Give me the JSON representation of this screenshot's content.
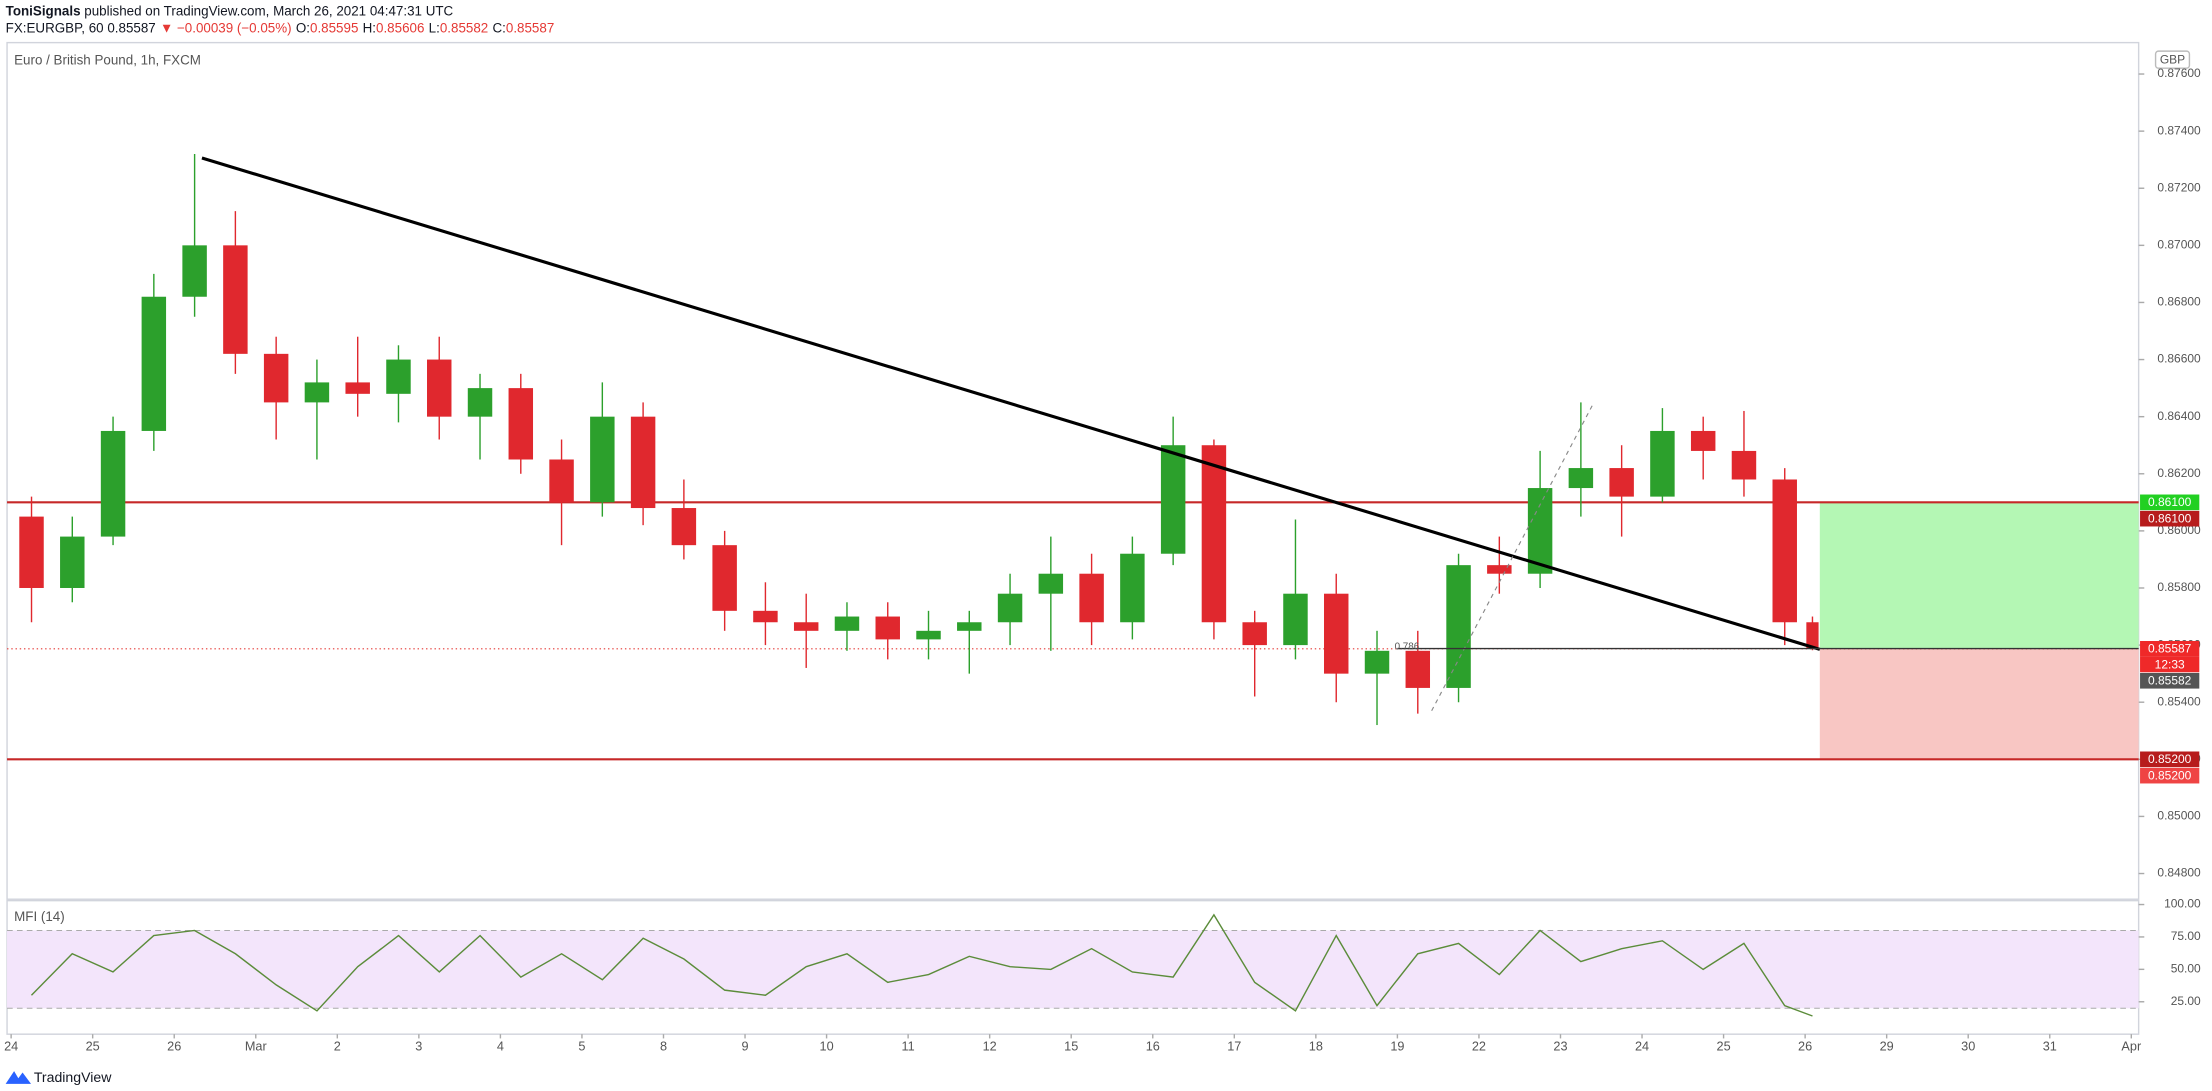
{
  "chart_data": {
    "type": "candlestick",
    "publisher": "ToniSignals",
    "published": " published on TradingView.com, March 26, 2021 04:47:31 UTC",
    "quote": [
      "FX:EURGBP, 60 0.85587",
      "▼ −0.00039 (−0.05%)",
      "O:",
      "0.85595",
      "H:",
      "0.85606",
      "L:",
      "0.85582",
      "C:",
      "0.85587"
    ],
    "quote_colors": [
      "#131722",
      "#e53935",
      "#131722",
      "#e53935",
      "#131722",
      "#e53935",
      "#131722",
      "#e53935",
      "#131722",
      "#e53935"
    ],
    "title": "Euro / British Pound, 1h, FXCM",
    "currency": "GBP",
    "up_color": "#2ca02c",
    "down_color": "#e0282e",
    "xlim": [
      -0.05,
      26.09
    ],
    "xticks": [
      {
        "value": 0,
        "label": "24"
      },
      {
        "value": 1,
        "label": "25"
      },
      {
        "value": 2,
        "label": "26"
      },
      {
        "value": 3,
        "label": "Mar"
      },
      {
        "value": 4,
        "label": "2"
      },
      {
        "value": 5,
        "label": "3"
      },
      {
        "value": 6,
        "label": "4"
      },
      {
        "value": 7,
        "label": "5"
      },
      {
        "value": 8,
        "label": "8"
      },
      {
        "value": 9,
        "label": "9"
      },
      {
        "value": 10,
        "label": "10"
      },
      {
        "value": 11,
        "label": "11"
      },
      {
        "value": 12,
        "label": "12"
      },
      {
        "value": 13,
        "label": "15"
      },
      {
        "value": 14,
        "label": "16"
      },
      {
        "value": 15,
        "label": "17"
      },
      {
        "value": 16,
        "label": "18"
      },
      {
        "value": 17,
        "label": "19"
      },
      {
        "value": 18,
        "label": "22"
      },
      {
        "value": 19,
        "label": "23"
      },
      {
        "value": 20,
        "label": "24"
      },
      {
        "value": 21,
        "label": "25"
      },
      {
        "value": 22,
        "label": "26"
      },
      {
        "value": 23,
        "label": "29"
      },
      {
        "value": 24,
        "label": "30"
      },
      {
        "value": 25,
        "label": "31"
      },
      {
        "value": 26,
        "label": "Apr"
      }
    ],
    "ylim": [
      0.8471,
      0.8771
    ],
    "yticks": [
      {
        "value": 0.848,
        "label": "0.84800"
      },
      {
        "value": 0.85,
        "label": "0.85000"
      },
      {
        "value": 0.852,
        "label": "0.85200"
      },
      {
        "value": 0.854,
        "label": "0.85400"
      },
      {
        "value": 0.856,
        "label": "0.85600"
      },
      {
        "value": 0.858,
        "label": "0.85800"
      },
      {
        "value": 0.86,
        "label": "0.86000"
      },
      {
        "value": 0.862,
        "label": "0.86200"
      },
      {
        "value": 0.864,
        "label": "0.86400"
      },
      {
        "value": 0.866,
        "label": "0.86600"
      },
      {
        "value": 0.868,
        "label": "0.86800"
      },
      {
        "value": 0.87,
        "label": "0.87000"
      },
      {
        "value": 0.872,
        "label": "0.87200"
      },
      {
        "value": 0.874,
        "label": "0.87400"
      },
      {
        "value": 0.876,
        "label": "0.87600"
      }
    ],
    "candles": {
      "x": [
        0.25,
        0.75,
        1.25,
        1.75,
        2.25,
        2.75,
        3.25,
        3.75,
        4.25,
        4.75,
        5.25,
        5.75,
        6.25,
        6.75,
        7.25,
        7.75,
        8.25,
        8.75,
        9.25,
        9.75,
        10.25,
        10.75,
        11.25,
        11.75,
        12.25,
        12.75,
        13.25,
        13.75,
        14.25,
        14.75,
        15.25,
        15.75,
        16.25,
        16.75,
        17.25,
        17.75,
        18.25,
        18.75,
        19.25,
        19.75,
        20.25,
        20.75,
        21.25,
        21.75,
        22.09
      ],
      "open": [
        0.8605,
        0.858,
        0.8598,
        0.8635,
        0.8682,
        0.87,
        0.8662,
        0.8645,
        0.8652,
        0.8648,
        0.866,
        0.864,
        0.865,
        0.8625,
        0.861,
        0.864,
        0.8608,
        0.8595,
        0.8572,
        0.8568,
        0.8565,
        0.857,
        0.8562,
        0.8565,
        0.8568,
        0.8578,
        0.8585,
        0.8568,
        0.8592,
        0.863,
        0.8568,
        0.856,
        0.8578,
        0.855,
        0.8558,
        0.8545,
        0.8588,
        0.8585,
        0.8615,
        0.8622,
        0.8612,
        0.8635,
        0.8628,
        0.8618,
        0.8568
      ],
      "high": [
        0.8612,
        0.8605,
        0.864,
        0.869,
        0.8732,
        0.8712,
        0.8668,
        0.866,
        0.8668,
        0.8665,
        0.8668,
        0.8655,
        0.8655,
        0.8632,
        0.8652,
        0.8645,
        0.8618,
        0.86,
        0.8582,
        0.8578,
        0.8575,
        0.8575,
        0.8572,
        0.8572,
        0.8585,
        0.8598,
        0.8592,
        0.8598,
        0.864,
        0.8632,
        0.8572,
        0.8604,
        0.8585,
        0.8565,
        0.8565,
        0.8592,
        0.8598,
        0.8628,
        0.8645,
        0.863,
        0.8643,
        0.864,
        0.8642,
        0.8622,
        0.857
      ],
      "low": [
        0.8568,
        0.8575,
        0.8595,
        0.8628,
        0.8675,
        0.8655,
        0.8632,
        0.8625,
        0.864,
        0.8638,
        0.8632,
        0.8625,
        0.862,
        0.8595,
        0.8605,
        0.8602,
        0.859,
        0.8565,
        0.856,
        0.8552,
        0.8558,
        0.8555,
        0.8555,
        0.855,
        0.856,
        0.8558,
        0.856,
        0.8562,
        0.8588,
        0.8562,
        0.8542,
        0.8555,
        0.854,
        0.8532,
        0.8536,
        0.854,
        0.8578,
        0.858,
        0.8605,
        0.8598,
        0.861,
        0.8618,
        0.8612,
        0.856,
        0.85582
      ],
      "close": [
        0.858,
        0.8598,
        0.8635,
        0.8682,
        0.87,
        0.8662,
        0.8645,
        0.8652,
        0.8648,
        0.866,
        0.864,
        0.865,
        0.8625,
        0.861,
        0.864,
        0.8608,
        0.8595,
        0.8572,
        0.8568,
        0.8565,
        0.857,
        0.8562,
        0.8565,
        0.8568,
        0.8578,
        0.8585,
        0.8568,
        0.8592,
        0.863,
        0.8568,
        0.856,
        0.8578,
        0.855,
        0.8558,
        0.8545,
        0.8588,
        0.8585,
        0.8615,
        0.8622,
        0.8612,
        0.8635,
        0.8628,
        0.8618,
        0.8568,
        0.85587
      ]
    },
    "last": 0.85587,
    "hlines": [
      {
        "value": 0.861,
        "color": "#c62828"
      },
      {
        "value": 0.852,
        "color": "#c62828"
      }
    ],
    "trendline": {
      "x": [
        2.34,
        22.18
      ],
      "y": [
        0.87306,
        0.85585
      ]
    },
    "fib": {
      "x": [
        17.42,
        19.41
      ],
      "y": [
        0.8537,
        0.8645
      ],
      "level": {
        "label": "0.786",
        "value": 0.85588,
        "x": [
          17.0,
          26.09
        ]
      }
    },
    "position": {
      "x": [
        22.18,
        26.09
      ],
      "entry": 0.85587,
      "target": 0.861,
      "stop": 0.852
    },
    "axis_labels": [
      {
        "value": 0.861,
        "label": "0.86100",
        "color": "#22d022"
      },
      {
        "value": 0.861,
        "label": "0.86100",
        "color": "#b71c1c"
      },
      {
        "value": 0.85587,
        "label": "0.85587",
        "color": "#ef2929"
      },
      {
        "value": 0.85582,
        "label": "0.85582",
        "color": "#555555"
      },
      {
        "value": 0.852,
        "label": "0.85200",
        "color": "#b71c1c"
      },
      {
        "value": 0.852,
        "label": "0.85200",
        "color": "#ef4444"
      }
    ],
    "countdown": "12:33",
    "mfi": {
      "label": "MFI (14)",
      "ylim": [
        0,
        103
      ],
      "band": [
        20,
        80
      ],
      "yticks": [
        {
          "value": 25,
          "label": "25.00"
        },
        {
          "value": 50,
          "label": "50.00"
        },
        {
          "value": 75,
          "label": "75.00"
        },
        {
          "value": 100,
          "label": "100.00"
        }
      ],
      "values": [
        30,
        62,
        48,
        76,
        80,
        62,
        38,
        18,
        52,
        76,
        48,
        76,
        44,
        62,
        42,
        74,
        58,
        34,
        30,
        52,
        62,
        40,
        46,
        60,
        52,
        50,
        66,
        48,
        44,
        92,
        40,
        18,
        76,
        22,
        62,
        70,
        46,
        80,
        56,
        66,
        72,
        50,
        70,
        22,
        14
      ]
    },
    "footer": "TradingView"
  }
}
